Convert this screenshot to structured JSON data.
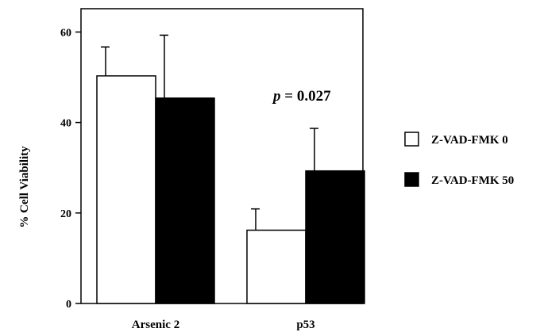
{
  "chart_data": {
    "type": "bar",
    "categories": [
      "Arsenic 2",
      "p53"
    ],
    "series": [
      {
        "name": "Z-VAD-FMK 0",
        "values": [
          50.3,
          16.2
        ],
        "errors": [
          6.4,
          4.7
        ],
        "color": "#ffffff"
      },
      {
        "name": "Z-VAD-FMK 50",
        "values": [
          45.4,
          29.3
        ],
        "errors": [
          13.9,
          9.4
        ],
        "color": "#000000"
      }
    ],
    "ylabel": "% Cell Viability",
    "xlabel": "",
    "ylim": [
      0,
      65
    ],
    "yticks": [
      0,
      20,
      40,
      60
    ],
    "annotation": {
      "italic": "p",
      "text": " = 0.027"
    },
    "legend_position": "right",
    "grid": false
  }
}
